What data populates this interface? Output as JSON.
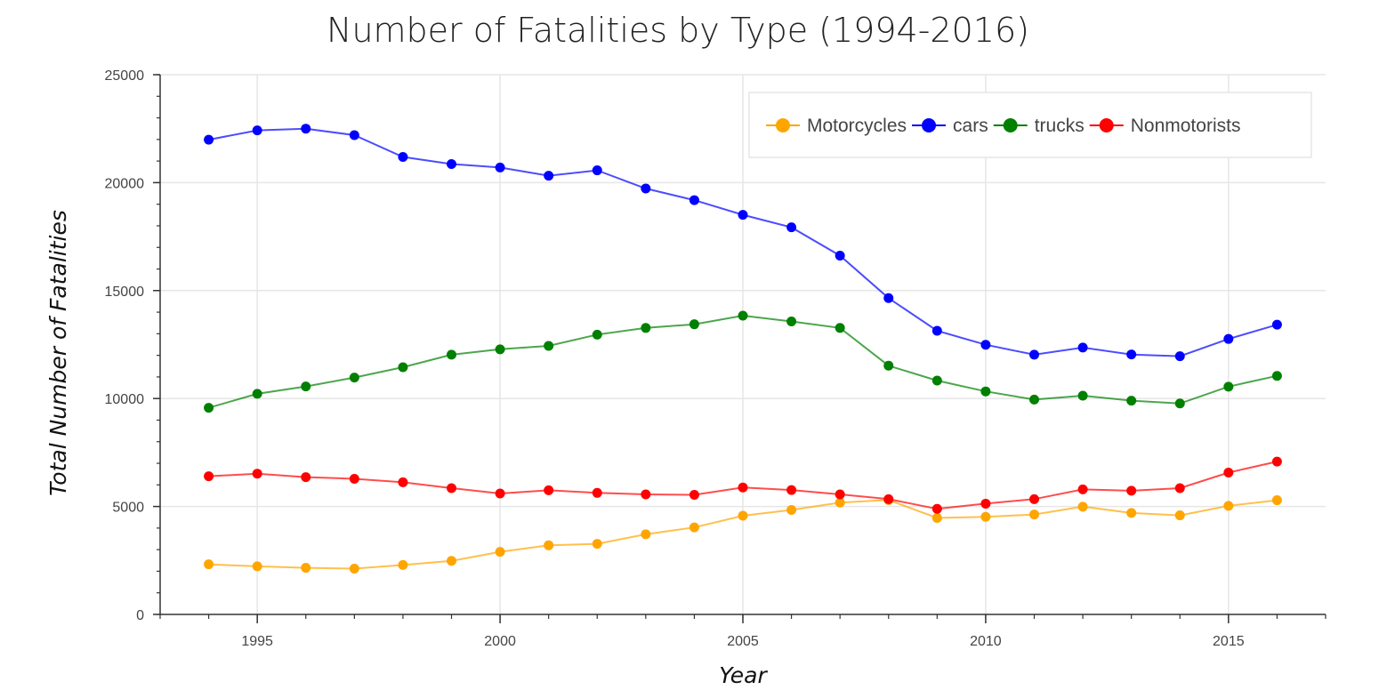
{
  "chart_data": {
    "type": "line",
    "title": "Number of Fatalities by Type (1994-2016)",
    "xlabel": "Year",
    "ylabel": "Total Number of Fatalities",
    "x": [
      1994,
      1995,
      1996,
      1997,
      1998,
      1999,
      2000,
      2001,
      2002,
      2003,
      2004,
      2005,
      2006,
      2007,
      2008,
      2009,
      2010,
      2011,
      2012,
      2013,
      2014,
      2015,
      2016
    ],
    "xlim": [
      1993,
      2017
    ],
    "ylim": [
      0,
      25000
    ],
    "x_ticks": [
      1995,
      2000,
      2005,
      2010,
      2015
    ],
    "x_tick_labels": [
      "1995",
      "2000",
      "2005",
      "2010",
      "2015"
    ],
    "y_ticks": [
      0,
      5000,
      10000,
      15000,
      20000,
      25000
    ],
    "y_tick_labels": [
      "0",
      "5000",
      "10000",
      "15000",
      "20000",
      "25000"
    ],
    "grid": true,
    "legend_position": "top-right",
    "series": [
      {
        "name": "Motorcycles",
        "color": "#ffa500",
        "values": [
          2320,
          2230,
          2160,
          2120,
          2290,
          2480,
          2900,
          3200,
          3270,
          3710,
          4030,
          4570,
          4840,
          5180,
          5300,
          4470,
          4520,
          4630,
          4990,
          4700,
          4590,
          5030,
          5290
        ]
      },
      {
        "name": "cars",
        "color": "#0000ff",
        "values": [
          21990,
          22420,
          22500,
          22200,
          21190,
          20860,
          20700,
          20320,
          20570,
          19730,
          19190,
          18510,
          17930,
          16620,
          14650,
          13140,
          12490,
          12030,
          12360,
          12040,
          11960,
          12760,
          13420
        ]
      },
      {
        "name": "trucks",
        "color": "#008000",
        "values": [
          9570,
          10220,
          10560,
          10970,
          11450,
          12030,
          12280,
          12440,
          12960,
          13270,
          13440,
          13840,
          13570,
          13270,
          11520,
          10830,
          10330,
          9950,
          10130,
          9900,
          9770,
          10550,
          11050
        ]
      },
      {
        "name": "Nonmotorists",
        "color": "#ff0000",
        "values": [
          6400,
          6520,
          6360,
          6280,
          6120,
          5850,
          5600,
          5750,
          5630,
          5560,
          5540,
          5880,
          5760,
          5560,
          5340,
          4890,
          5130,
          5340,
          5790,
          5730,
          5850,
          6570,
          7080
        ]
      }
    ]
  }
}
